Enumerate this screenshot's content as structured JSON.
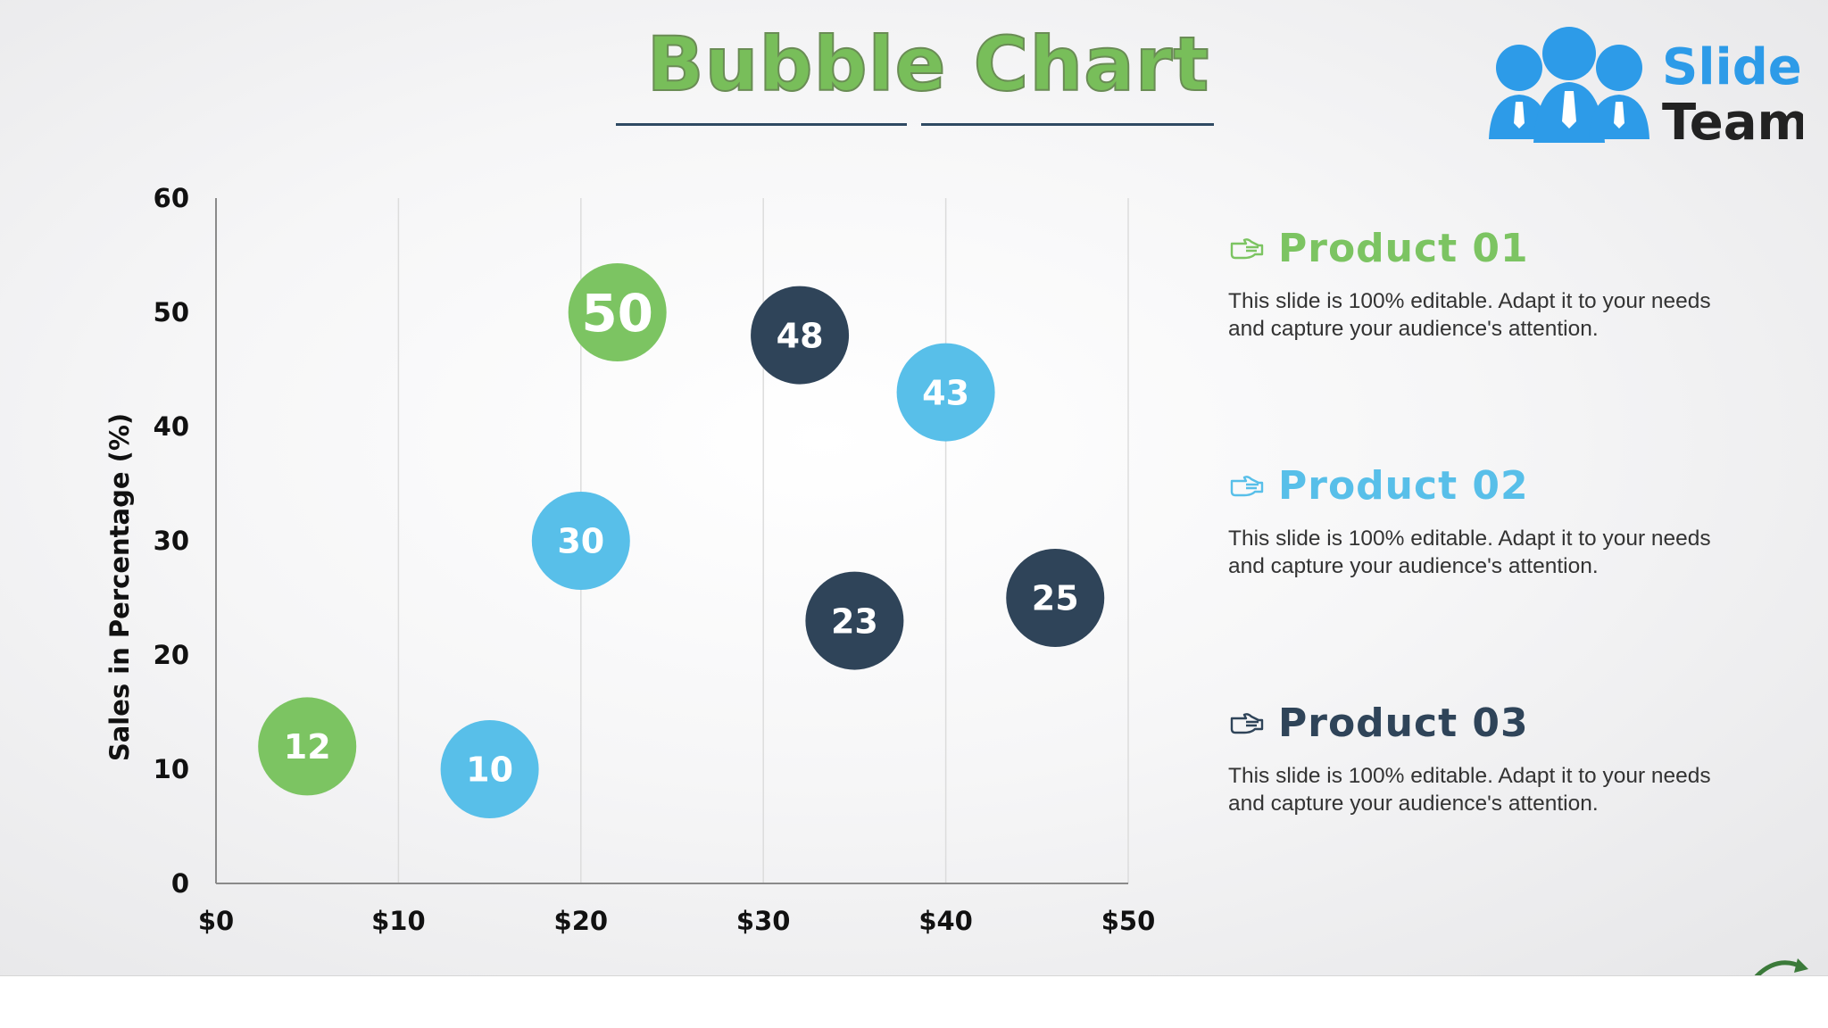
{
  "slide": {
    "title": "Bubble Chart",
    "logo": {
      "line1": "Slide",
      "line2": "Team"
    }
  },
  "colors": {
    "green": "#7cc462",
    "blue": "#58bfe9",
    "navy": "#2f4459",
    "title_green": "#78be5a",
    "logo_blue": "#2d9be8",
    "logo_dark": "#222222"
  },
  "chart_data": {
    "type": "scatter",
    "title": "Bubble Chart",
    "xlabel": "",
    "ylabel": "Sales in Percentage (%)",
    "xlim": [
      0,
      50
    ],
    "ylim": [
      0,
      60
    ],
    "x_ticks": [
      {
        "value": 0,
        "label": "$0"
      },
      {
        "value": 10,
        "label": "$10"
      },
      {
        "value": 20,
        "label": "$20"
      },
      {
        "value": 30,
        "label": "$30"
      },
      {
        "value": 40,
        "label": "$40"
      },
      {
        "value": 50,
        "label": "$50"
      }
    ],
    "y_ticks": [
      {
        "value": 0,
        "label": "0"
      },
      {
        "value": 10,
        "label": "10"
      },
      {
        "value": 20,
        "label": "20"
      },
      {
        "value": 30,
        "label": "30"
      },
      {
        "value": 40,
        "label": "40"
      },
      {
        "value": 50,
        "label": "50"
      },
      {
        "value": 60,
        "label": "60"
      }
    ],
    "grid": {
      "vertical": true,
      "horizontal": false
    },
    "legend_position": "right",
    "series": [
      {
        "name": "Product 01",
        "color": "#7cc462",
        "points": [
          {
            "x": 5,
            "y": 12,
            "label": "12"
          },
          {
            "x": 22,
            "y": 50,
            "label": "50"
          }
        ]
      },
      {
        "name": "Product 02",
        "color": "#58bfe9",
        "points": [
          {
            "x": 15,
            "y": 10,
            "label": "10"
          },
          {
            "x": 20,
            "y": 30,
            "label": "30"
          },
          {
            "x": 40,
            "y": 43,
            "label": "43"
          }
        ]
      },
      {
        "name": "Product 03",
        "color": "#2f4459",
        "points": [
          {
            "x": 32,
            "y": 48,
            "label": "48"
          },
          {
            "x": 35,
            "y": 23,
            "label": "23"
          },
          {
            "x": 46,
            "y": 25,
            "label": "25"
          }
        ]
      }
    ]
  },
  "legend": [
    {
      "title": "Product 01",
      "color": "#7cc462",
      "icon": "pointing-hand-icon",
      "description": "This slide is 100% editable. Adapt it to your needs and capture your audience's attention."
    },
    {
      "title": "Product 02",
      "color": "#58bfe9",
      "icon": "pointing-hand-icon",
      "description": "This slide is 100% editable. Adapt it to your needs and capture your audience's attention."
    },
    {
      "title": "Product 03",
      "color": "#2f4459",
      "icon": "pointing-hand-icon",
      "description": "This slide is 100% editable. Adapt it to your needs and capture your audience's attention."
    }
  ]
}
